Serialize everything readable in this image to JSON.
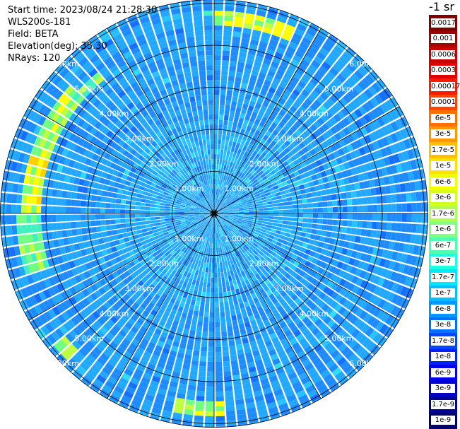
{
  "info": {
    "start_time": "Start time: 2023/08/24 21:28:30",
    "device": "WLS200s-181",
    "field": "Field: BETA",
    "elevation": "Elevation(deg): 35.30",
    "nrays": "NRays: 120"
  },
  "colorbar": {
    "unit": "-1 sr",
    "labels": [
      "0.0017",
      "0.001",
      "0.0006",
      "0.0003",
      "0.00017",
      "0.0001",
      "6e-5",
      "3e-5",
      "1.7e-5",
      "1e-5",
      "6e-6",
      "3e-6",
      "1.7e-6",
      "1e-6",
      "6e-7",
      "3e-7",
      "1.7e-7",
      "1e-7",
      "6e-8",
      "3e-8",
      "1.7e-8",
      "1e-8",
      "6e-9",
      "3e-9",
      "1.7e-9",
      "1e-9"
    ],
    "colors": [
      "#800000",
      "#a00000",
      "#c80000",
      "#e00000",
      "#ff1a00",
      "#ff4400",
      "#ff7000",
      "#ff9800",
      "#ffc000",
      "#ffe000",
      "#f0ff00",
      "#d0ff20",
      "#b0ff50",
      "#80ff80",
      "#50ffb0",
      "#20ffe0",
      "#00e8ff",
      "#00c0ff",
      "#0098ff",
      "#0070ff",
      "#0048ff",
      "#0020ff",
      "#0000e8",
      "#0000c0",
      "#000098",
      "#000070"
    ]
  },
  "range_rings": {
    "labels": [
      "1.00km",
      "2.00km",
      "3.00km",
      "4.00km",
      "5.00km",
      "6.00km"
    ]
  }
}
